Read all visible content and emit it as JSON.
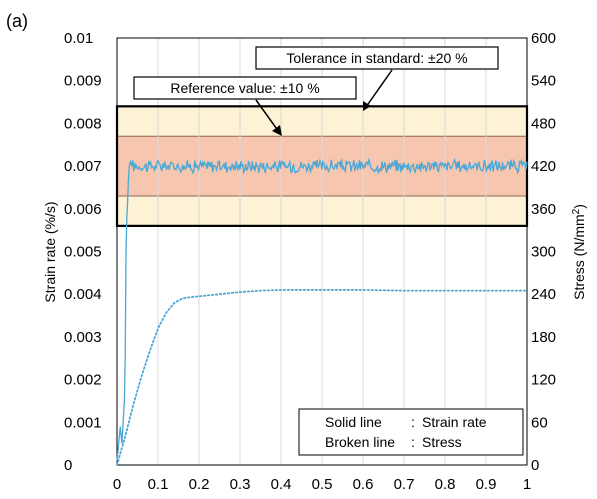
{
  "panel_label": "(a)",
  "chart_data": {
    "type": "line",
    "xlim": [
      0,
      1
    ],
    "ylim_left": [
      0,
      0.01
    ],
    "ylim_right": [
      0,
      600
    ],
    "x_ticks": [
      "0",
      "0.1",
      "0.2",
      "0.3",
      "0.4",
      "0.5",
      "0.6",
      "0.7",
      "0.8",
      "0.9",
      "1"
    ],
    "y_left_ticks": [
      "0",
      "0.001",
      "0.002",
      "0.003",
      "0.004",
      "0.005",
      "0.006",
      "0.007",
      "0.008",
      "0.009",
      "0.01"
    ],
    "y_right_ticks": [
      "0",
      "60",
      "120",
      "180",
      "240",
      "300",
      "360",
      "420",
      "480",
      "540",
      "600"
    ],
    "ylabel_left": "Strain rate (%/s)",
    "ylabel_right_main": "Stress (N/mm",
    "ylabel_right_sup": "2",
    "ylabel_right_end": ")",
    "grid": "vertical",
    "tolerance_band": {
      "label": "Tolerance in standard: ±20 %",
      "y_range": [
        0.0056,
        0.0084
      ],
      "color": "#fdf1d6"
    },
    "reference_band": {
      "label": "Reference value: ±10 %",
      "y_range": [
        0.0063,
        0.0077
      ],
      "color": "#f7c6ae"
    },
    "series": [
      {
        "name": "Strain rate",
        "style": "solid",
        "color": "#4aa8d8",
        "level": 0.007,
        "noise": 0.00013,
        "x": [
          0,
          0.005,
          0.008,
          0.012,
          0.015,
          0.018,
          0.02,
          0.022,
          0.024,
          0.026,
          0.028,
          0.03,
          0.033,
          0.036
        ],
        "y": [
          0.0001,
          0.0006,
          0.0009,
          0.0005,
          0.001,
          0.0015,
          0.0025,
          0.005,
          0.0058,
          0.0062,
          0.0067,
          0.007,
          0.0071,
          0.007
        ]
      },
      {
        "name": "Stress",
        "style": "dotted",
        "color": "#4aa8d8",
        "x": [
          0,
          0.02,
          0.04,
          0.06,
          0.08,
          0.1,
          0.12,
          0.14,
          0.16,
          0.18,
          0.2,
          0.25,
          0.3,
          0.35,
          0.4,
          0.5,
          0.6,
          0.7,
          0.8,
          0.9,
          1.0
        ],
        "y": [
          0,
          40,
          85,
          125,
          160,
          192,
          214,
          228,
          234,
          236,
          237,
          240,
          243,
          245,
          246,
          246,
          246,
          245,
          245,
          245,
          245
        ]
      }
    ],
    "legend": {
      "lines": [
        {
          "key": "Solid line   ",
          "sep": ": ",
          "value": "Strain rate"
        },
        {
          "key": "Broken line",
          "sep": ": ",
          "value": "Stress"
        }
      ],
      "placement": "bottom-right"
    }
  }
}
